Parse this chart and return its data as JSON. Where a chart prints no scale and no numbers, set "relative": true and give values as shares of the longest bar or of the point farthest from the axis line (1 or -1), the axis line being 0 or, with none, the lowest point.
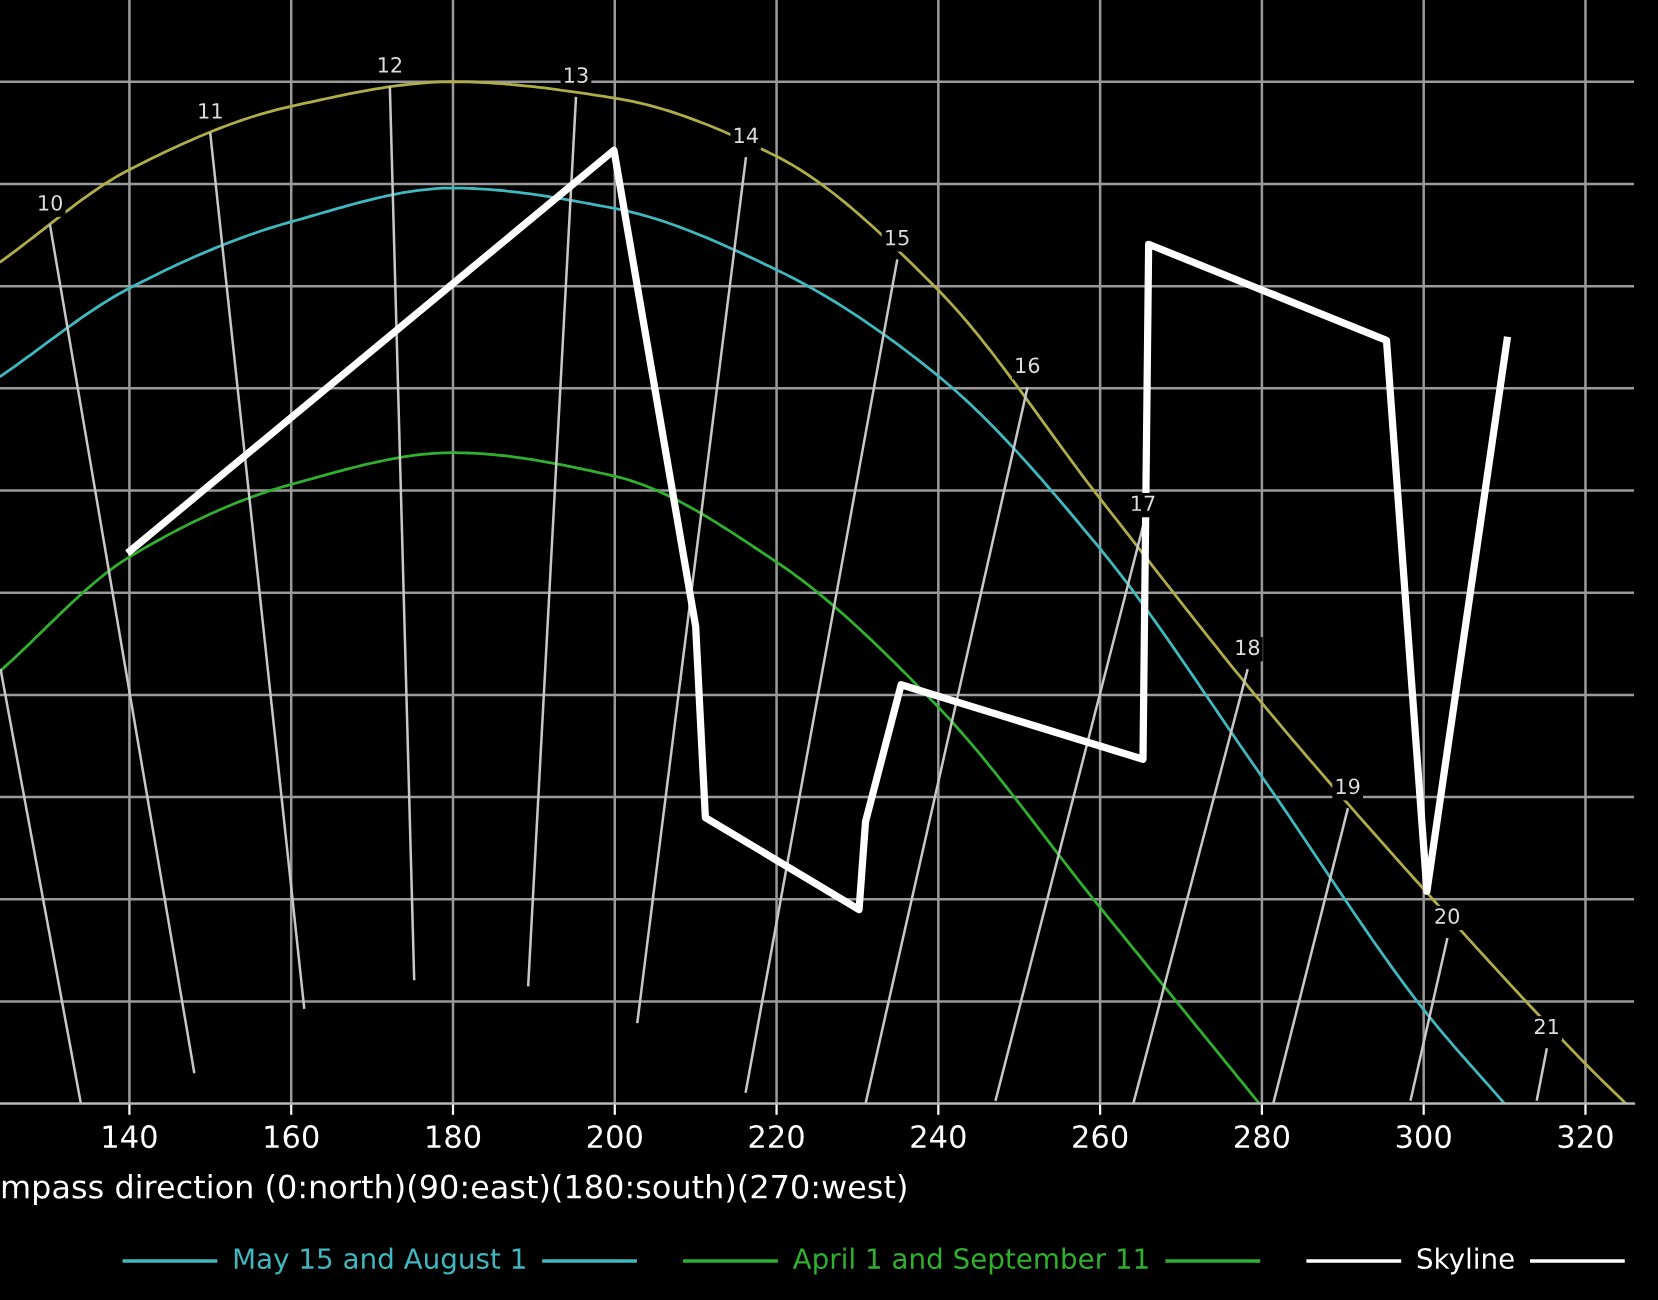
{
  "chart_data": {
    "type": "line",
    "relative": true,
    "xlabel": "mpass direction (0:north)(90:east)(180:south)(270:west)",
    "xlim": [
      124,
      326
    ],
    "xticks": [
      140,
      160,
      180,
      200,
      220,
      240,
      260,
      280,
      300,
      320
    ],
    "grid": true,
    "legend": "bottom",
    "tick_labels": "x",
    "series": [
      {
        "color": "#b0ad48",
        "x": [
          124.1,
          140,
          160,
          180,
          200,
          220,
          240,
          260,
          280,
          300,
          320,
          325
        ],
        "values": [
          0.824,
          0.914,
          0.976,
          1.0,
          0.984,
          0.927,
          0.796,
          0.592,
          0.392,
          0.21,
          0.039,
          0
        ]
      },
      {
        "name": "May 15 and August 1",
        "color": "#3fb8c0",
        "x": [
          124.1,
          140,
          160,
          180,
          200,
          220,
          240,
          260,
          280,
          300,
          310
        ],
        "values": [
          0.712,
          0.798,
          0.863,
          0.896,
          0.876,
          0.816,
          0.712,
          0.543,
          0.32,
          0.092,
          0
        ]
      },
      {
        "name": "April 1 and September 11",
        "color": "#2fb02f",
        "x": [
          124.1,
          140,
          160,
          180,
          200,
          220,
          240,
          260,
          279.7
        ],
        "values": [
          0.424,
          0.535,
          0.606,
          0.637,
          0.614,
          0.53,
          0.388,
          0.192,
          0
        ]
      },
      {
        "name": "Skyline",
        "color": "#ffffff",
        "x": [
          140.1,
          199.9,
          210,
          211.2,
          230.2,
          231,
          235.4,
          265.3,
          266,
          295.4,
          300.4,
          310.3
        ],
        "values": [
          0.541,
          0.933,
          0.467,
          0.28,
          0.19,
          0.276,
          0.41,
          0.337,
          0.841,
          0.747,
          0.208,
          0.747
        ]
      },
      {
        "color": "#c8c8c8",
        "x": [
          124.1,
          134
        ],
        "values": [
          0.424,
          0
        ]
      },
      {
        "color": "#c8c8c8",
        "x": [
          130.2,
          148
        ],
        "values": [
          0.859,
          0.031
        ]
      },
      {
        "color": "#c8c8c8",
        "x": [
          150.0,
          161.6
        ],
        "values": [
          0.949,
          0.094
        ]
      },
      {
        "color": "#c8c8c8",
        "x": [
          172.2,
          175.2
        ],
        "values": [
          0.994,
          0.122
        ]
      },
      {
        "color": "#c8c8c8",
        "x": [
          195.2,
          189.3
        ],
        "values": [
          0.984,
          0.116
        ]
      },
      {
        "color": "#c8c8c8",
        "x": [
          216.2,
          202.8
        ],
        "values": [
          0.925,
          0.08
        ]
      },
      {
        "color": "#c8c8c8",
        "x": [
          234.9,
          216.2
        ],
        "values": [
          0.825,
          0.012
        ]
      },
      {
        "color": "#c8c8c8",
        "x": [
          251.0,
          231.0
        ],
        "values": [
          0.7,
          0
        ]
      },
      {
        "color": "#c8c8c8",
        "x": [
          265.3,
          247.1
        ],
        "values": [
          0.565,
          0.004
        ]
      },
      {
        "color": "#c8c8c8",
        "x": [
          278.2,
          264.1
        ],
        "values": [
          0.424,
          0
        ]
      },
      {
        "color": "#c8c8c8",
        "x": [
          290.6,
          281.4
        ],
        "values": [
          0.288,
          0
        ]
      },
      {
        "color": "#c8c8c8",
        "x": [
          302.9,
          298.4
        ],
        "values": [
          0.161,
          0.004
        ]
      },
      {
        "color": "#c8c8c8",
        "x": [
          315.2,
          314.0
        ],
        "values": [
          0.053,
          0.004
        ]
      }
    ],
    "annotations": [
      {
        "text": "10",
        "x": 130.2,
        "y": 0.859
      },
      {
        "text": "11",
        "x": 150.0,
        "y": 0.949
      },
      {
        "text": "12",
        "x": 172.2,
        "y": 0.994
      },
      {
        "text": "13",
        "x": 195.2,
        "y": 0.984
      },
      {
        "text": "14",
        "x": 216.2,
        "y": 0.925
      },
      {
        "text": "15",
        "x": 234.9,
        "y": 0.825
      },
      {
        "text": "16",
        "x": 251.0,
        "y": 0.7
      },
      {
        "text": "17",
        "x": 265.3,
        "y": 0.565
      },
      {
        "text": "18",
        "x": 278.2,
        "y": 0.424
      },
      {
        "text": "19",
        "x": 290.6,
        "y": 0.288
      },
      {
        "text": "20",
        "x": 302.9,
        "y": 0.161
      },
      {
        "text": "21",
        "x": 315.2,
        "y": 0.053
      }
    ]
  }
}
